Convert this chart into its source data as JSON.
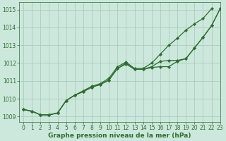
{
  "title": "Graphe pression niveau de la mer (hPa)",
  "bg_color": "#cce8dc",
  "grid_color": "#aaccbb",
  "line_color": "#2d6e2d",
  "xlim": [
    -0.5,
    23
  ],
  "ylim": [
    1008.7,
    1015.4
  ],
  "xtick_labels": [
    "0",
    "1",
    "2",
    "3",
    "4",
    "5",
    "6",
    "7",
    "8",
    "9",
    "10",
    "11",
    "12",
    "13",
    "14",
    "15",
    "16",
    "17",
    "18",
    "19",
    "20",
    "21",
    "22",
    "23"
  ],
  "ytick_values": [
    1009,
    1010,
    1011,
    1012,
    1013,
    1014,
    1015
  ],
  "x": [
    0,
    1,
    2,
    3,
    4,
    5,
    6,
    7,
    8,
    9,
    10,
    11,
    12,
    13,
    14,
    15,
    16,
    17,
    18,
    19,
    20,
    21,
    22,
    23
  ],
  "line1": [
    1009.4,
    1009.3,
    1009.1,
    1009.1,
    1009.2,
    1009.9,
    1010.2,
    1010.4,
    1010.65,
    1010.8,
    1011.05,
    1011.7,
    1012.0,
    1011.65,
    1011.65,
    1011.8,
    1012.1,
    1012.15,
    1012.15,
    1012.25,
    1012.85,
    1013.45,
    1014.1,
    1015.05
  ],
  "line2": [
    1009.4,
    1009.3,
    1009.1,
    1009.1,
    1009.2,
    1009.9,
    1010.2,
    1010.4,
    1010.65,
    1010.8,
    1011.05,
    1011.7,
    1011.95,
    1011.65,
    1011.65,
    1011.75,
    1011.8,
    1011.8,
    1012.1,
    1012.25,
    1012.85,
    1013.45,
    1014.1,
    1015.05
  ],
  "line3_upper": [
    1009.4,
    1009.3,
    1009.1,
    1009.1,
    1009.2,
    1009.9,
    1010.2,
    1010.4,
    1010.65,
    1010.8,
    1011.05,
    1011.7,
    1011.95,
    1011.65,
    1011.65,
    1011.8,
    1012.2,
    1012.6,
    1013.0,
    1013.45,
    1013.85,
    1014.1,
    1015.05,
    1015.05
  ],
  "figsize": [
    3.2,
    2.0
  ],
  "dpi": 100,
  "tick_fontsize": 5.5,
  "xlabel_fontsize": 6.5,
  "linewidth": 0.9,
  "markersize": 2.2
}
